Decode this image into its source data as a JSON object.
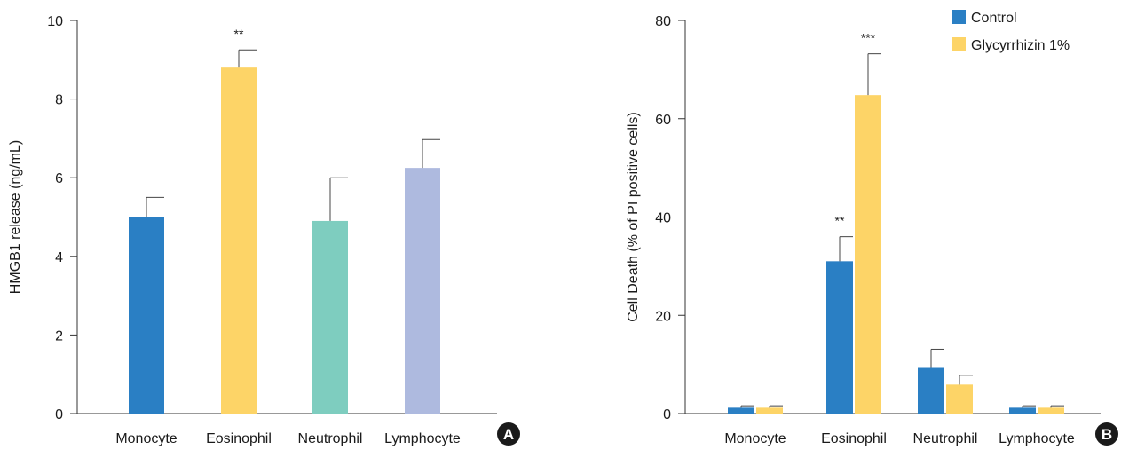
{
  "chart_data": [
    {
      "panel": "A",
      "type": "bar",
      "ylabel": "HMGB1 release (ng/mL)",
      "xlabel": "",
      "ylim": [
        0,
        10
      ],
      "yticks": [
        0,
        2,
        4,
        6,
        8,
        10
      ],
      "categories": [
        "Monocyte",
        "Eosinophil",
        "Neutrophil",
        "Lymphocyte"
      ],
      "values": [
        5.0,
        8.8,
        4.9,
        6.25
      ],
      "errors": [
        0.5,
        0.45,
        1.1,
        0.72
      ],
      "significance": [
        "",
        "**",
        "",
        ""
      ],
      "colors": [
        "#2a7fc4",
        "#fdd467",
        "#7ecdbf",
        "#aebadf"
      ],
      "grid": false
    },
    {
      "panel": "B",
      "type": "bar",
      "ylabel": "Cell Death (% of PI positive cells)",
      "xlabel": "",
      "ylim": [
        0,
        80
      ],
      "yticks": [
        0,
        20,
        40,
        60,
        80
      ],
      "categories": [
        "Monocyte",
        "Eosinophil",
        "Neutrophil",
        "Lymphocyte"
      ],
      "series": [
        {
          "name": "Control",
          "color": "#2a7fc4",
          "values": [
            1.2,
            31.0,
            9.3,
            1.2
          ],
          "errors": [
            0.4,
            5.0,
            3.8,
            0.4
          ],
          "significance": [
            "",
            "**",
            "",
            ""
          ]
        },
        {
          "name": "Glycyrrhizin 1%",
          "color": "#fdd467",
          "values": [
            1.2,
            64.8,
            5.9,
            1.2
          ],
          "errors": [
            0.4,
            8.4,
            1.9,
            0.4
          ],
          "significance": [
            "",
            "***",
            "",
            ""
          ]
        }
      ],
      "legend": "top-right",
      "grid": false
    }
  ]
}
